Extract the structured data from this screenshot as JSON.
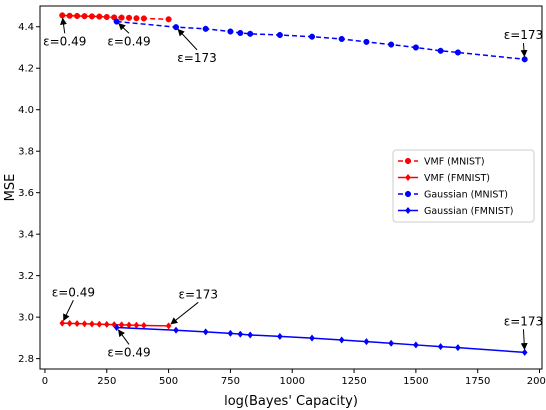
{
  "chart_data": {
    "type": "line",
    "title": "",
    "xlabel": "log(Bayes' Capacity)",
    "ylabel": "MSE",
    "xlim": [
      -20,
      2010
    ],
    "ylim": [
      2.75,
      4.5
    ],
    "xticks": [
      0,
      250,
      500,
      750,
      1000,
      1250,
      1500,
      1750,
      2000
    ],
    "yticks": [
      2.8,
      3.0,
      3.2,
      3.4,
      3.6,
      3.8,
      4.0,
      4.2,
      4.4
    ],
    "xtick_labels": [
      "0",
      "250",
      "500",
      "750",
      "1000",
      "1250",
      "1500",
      "1750",
      "2000"
    ],
    "ytick_labels": [
      "2.8",
      "3.0",
      "3.2",
      "3.4",
      "3.6",
      "3.8",
      "4.0",
      "4.2",
      "4.4"
    ],
    "grid": false,
    "legend_position": "center-right",
    "series": [
      {
        "name": "VMF (MNIST)",
        "color": "#ff0000",
        "line_style": "dashed",
        "marker": "circle",
        "x": [
          70,
          100,
          130,
          160,
          190,
          220,
          250,
          280,
          310,
          340,
          370,
          400,
          500
        ],
        "y": [
          4.455,
          4.453,
          4.452,
          4.451,
          4.45,
          4.449,
          4.447,
          4.445,
          4.444,
          4.443,
          4.441,
          4.44,
          4.436
        ]
      },
      {
        "name": "VMF (FMNIST)",
        "color": "#ff0000",
        "line_style": "solid",
        "marker": "diamond",
        "x": [
          70,
          100,
          130,
          160,
          190,
          220,
          250,
          280,
          310,
          340,
          370,
          400,
          500
        ],
        "y": [
          2.971,
          2.97,
          2.969,
          2.968,
          2.967,
          2.966,
          2.965,
          2.964,
          2.963,
          2.962,
          2.961,
          2.96,
          2.958
        ]
      },
      {
        "name": "Gaussian (MNIST)",
        "color": "#0000ff",
        "line_style": "dashed",
        "marker": "circle",
        "x": [
          290,
          530,
          650,
          750,
          790,
          830,
          950,
          1080,
          1200,
          1300,
          1400,
          1500,
          1600,
          1670,
          1940
        ],
        "y": [
          4.425,
          4.398,
          4.39,
          4.377,
          4.37,
          4.366,
          4.36,
          4.352,
          4.341,
          4.327,
          4.314,
          4.3,
          4.284,
          4.276,
          4.243
        ]
      },
      {
        "name": "Gaussian (FMNIST)",
        "color": "#0000ff",
        "line_style": "solid",
        "marker": "diamond",
        "x": [
          290,
          530,
          650,
          750,
          790,
          830,
          950,
          1080,
          1200,
          1300,
          1400,
          1500,
          1600,
          1670,
          1940
        ],
        "y": [
          2.95,
          2.937,
          2.929,
          2.922,
          2.918,
          2.914,
          2.907,
          2.899,
          2.89,
          2.882,
          2.874,
          2.866,
          2.858,
          2.853,
          2.83
        ]
      }
    ],
    "annotations": [
      {
        "text": "ε=0.49",
        "x": 80,
        "y": 4.33,
        "target_x": 70,
        "target_y": 4.455,
        "anchor": "middle"
      },
      {
        "text": "ε=0.49",
        "x": 340,
        "y": 4.33,
        "target_x": 290,
        "target_y": 4.425,
        "anchor": "middle"
      },
      {
        "text": "ε=173",
        "x": 615,
        "y": 4.25,
        "target_x": 530,
        "target_y": 4.398,
        "anchor": "middle"
      },
      {
        "text": "ε=173",
        "x": 1935,
        "y": 4.36,
        "target_x": 1940,
        "target_y": 4.243,
        "anchor": "middle"
      },
      {
        "text": "ε=0.49",
        "x": 115,
        "y": 3.12,
        "target_x": 70,
        "target_y": 2.971,
        "anchor": "middle"
      },
      {
        "text": "ε=0.49",
        "x": 340,
        "y": 2.83,
        "target_x": 290,
        "target_y": 2.95,
        "anchor": "middle"
      },
      {
        "text": "ε=173",
        "x": 620,
        "y": 3.11,
        "target_x": 500,
        "target_y": 2.958,
        "anchor": "middle"
      },
      {
        "text": "ε=173",
        "x": 1935,
        "y": 2.98,
        "target_x": 1940,
        "target_y": 2.83,
        "anchor": "middle"
      }
    ]
  }
}
